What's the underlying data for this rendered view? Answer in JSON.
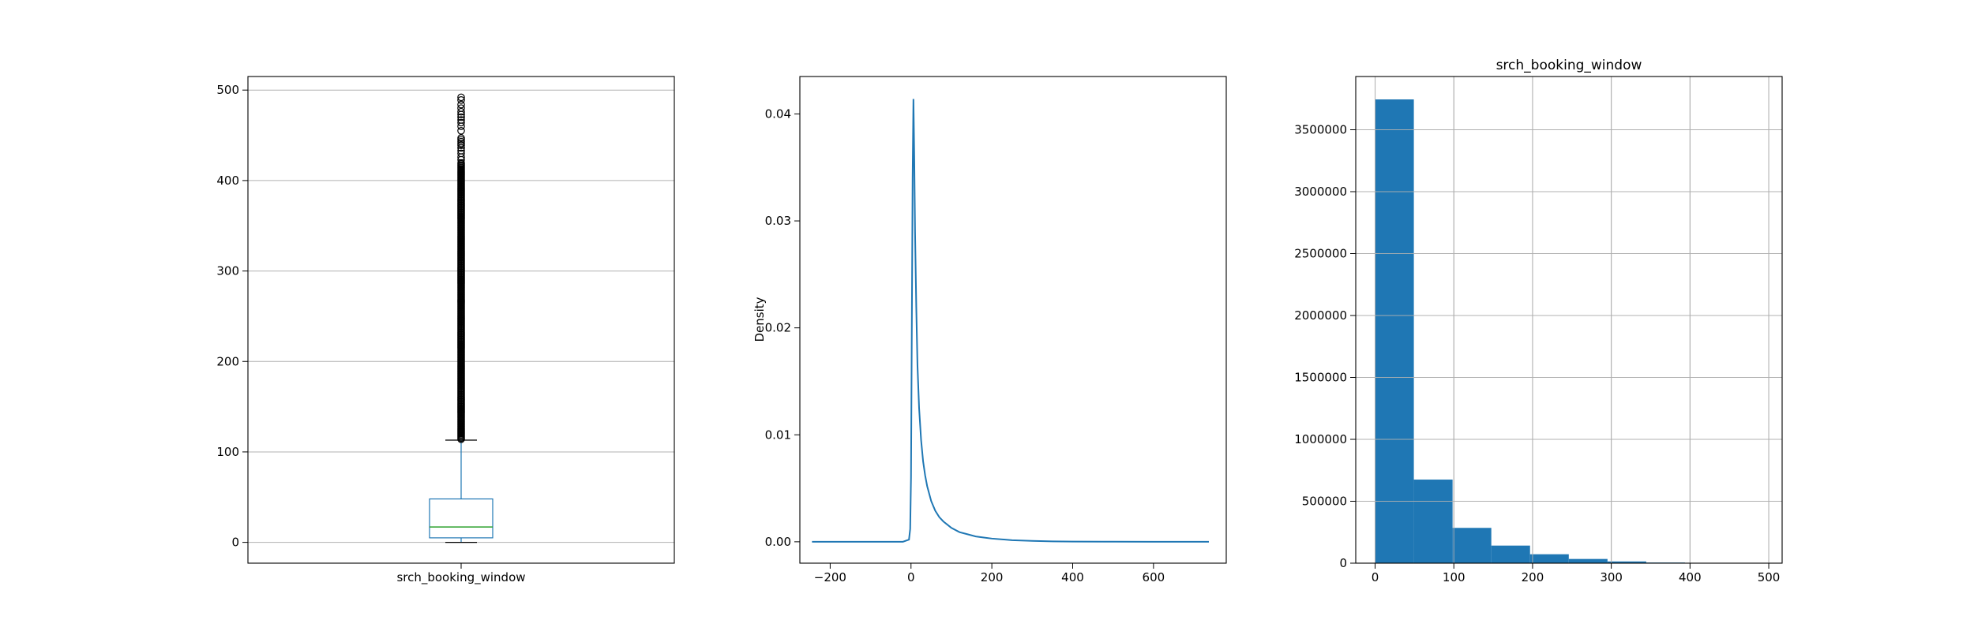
{
  "chart_data": [
    {
      "type": "box",
      "title": "",
      "xlabel": "",
      "ylabel": "",
      "categories": [
        "srch_booking_window"
      ],
      "ylim": [
        -23,
        515
      ],
      "yticks": [
        0,
        100,
        200,
        300,
        400,
        500
      ],
      "grid": true,
      "box": {
        "whisker_low": 0,
        "q1": 5,
        "median": 17,
        "q3": 48,
        "whisker_high": 113
      },
      "fliers": {
        "min": 114,
        "max": 492
      },
      "colors": {
        "box": "#1f77b4",
        "median": "#2ca02c",
        "fliers": "#000000"
      }
    },
    {
      "type": "line",
      "title": "",
      "xlabel": "",
      "ylabel": "Density",
      "xlim": [
        -275,
        780
      ],
      "ylim": [
        -0.002,
        0.0435
      ],
      "xticks": [
        -200,
        0,
        200,
        400,
        600
      ],
      "yticks": [
        0.0,
        0.01,
        0.02,
        0.03,
        0.04
      ],
      "grid": false,
      "series": [
        {
          "color": "#1f77b4",
          "x": [
            -245,
            -100,
            -20,
            -5,
            -2,
            0,
            2,
            4,
            6,
            8,
            10,
            13,
            16,
            20,
            25,
            30,
            35,
            40,
            50,
            60,
            70,
            80,
            90,
            100,
            120,
            140,
            160,
            180,
            200,
            250,
            300,
            350,
            400,
            500,
            600,
            737
          ],
          "y": [
            0,
            0,
            0,
            0.0002,
            0.0012,
            0.006,
            0.02,
            0.034,
            0.0414,
            0.036,
            0.029,
            0.022,
            0.0165,
            0.0125,
            0.0095,
            0.0075,
            0.0062,
            0.0052,
            0.0038,
            0.0029,
            0.0023,
            0.0019,
            0.0016,
            0.0013,
            0.0009,
            0.0007,
            0.0005,
            0.0004,
            0.0003,
            0.00015,
            8e-05,
            4e-05,
            2e-05,
            5e-06,
            0,
            0
          ]
        }
      ]
    },
    {
      "type": "bar",
      "title": "srch_booking_window",
      "xlabel": "",
      "ylabel": "",
      "xlim": [
        -24.6,
        517
      ],
      "ylim": [
        0,
        3930000
      ],
      "xticks": [
        0,
        100,
        200,
        300,
        400,
        500
      ],
      "yticks": [
        0,
        500000,
        1000000,
        1500000,
        2000000,
        2500000,
        3000000,
        3500000
      ],
      "grid": true,
      "bin_edges": [
        0,
        49.2,
        98.4,
        147.6,
        196.8,
        246,
        295.2,
        344.4,
        393.6,
        442.8,
        492
      ],
      "values": [
        3745000,
        675000,
        285000,
        142000,
        72000,
        34000,
        14000,
        5000,
        1500,
        600
      ],
      "color": "#1f77b4"
    }
  ]
}
